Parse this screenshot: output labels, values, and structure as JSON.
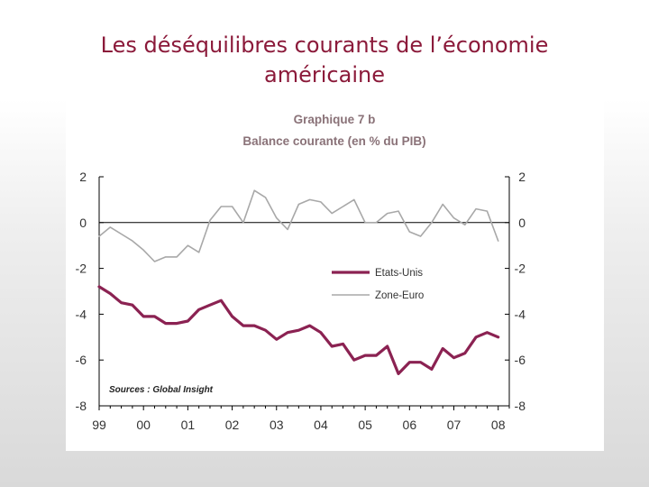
{
  "slide": {
    "title_line1": "Les déséquilibres courants de l’économie",
    "title_line2": "américaine"
  },
  "chart_data": {
    "type": "line",
    "title": "Graphique 7 b",
    "subtitle": "Balance courante (en % du PIB)",
    "xlabel": "",
    "ylabel": "",
    "x_tick_labels": [
      "99",
      "00",
      "01",
      "02",
      "03",
      "04",
      "05",
      "06",
      "07",
      "08"
    ],
    "x_range": [
      1999,
      2008.25
    ],
    "ylim": [
      -8,
      2
    ],
    "y_ticks": [
      2,
      0,
      -2,
      -4,
      -6,
      -8
    ],
    "y_tick_labels": [
      "2",
      "0",
      "-2",
      "-4",
      "-6",
      "-8"
    ],
    "zero_line": true,
    "source": "Sources : Global Insight",
    "legend_position": "center-right",
    "colors": {
      "title": "#8a7278",
      "us": "#8b2252",
      "euro": "#a8a8a8",
      "slide_title": "#8b1a3a"
    },
    "x": [
      1999.0,
      1999.25,
      1999.5,
      1999.75,
      2000.0,
      2000.25,
      2000.5,
      2000.75,
      2001.0,
      2001.25,
      2001.5,
      2001.75,
      2002.0,
      2002.25,
      2002.5,
      2002.75,
      2003.0,
      2003.25,
      2003.5,
      2003.75,
      2004.0,
      2004.25,
      2004.5,
      2004.75,
      2005.0,
      2005.25,
      2005.5,
      2005.75,
      2006.0,
      2006.25,
      2006.5,
      2006.75,
      2007.0,
      2007.25,
      2007.5,
      2007.75,
      2008.0
    ],
    "series": [
      {
        "name": "Etats-Unis",
        "values": [
          -2.8,
          -3.1,
          -3.5,
          -3.6,
          -4.1,
          -4.1,
          -4.4,
          -4.4,
          -4.3,
          -3.8,
          -3.6,
          -3.4,
          -4.1,
          -4.5,
          -4.5,
          -4.7,
          -5.1,
          -4.8,
          -4.7,
          -4.5,
          -4.8,
          -5.4,
          -5.3,
          -6.0,
          -5.8,
          -5.8,
          -5.4,
          -6.6,
          -6.1,
          -6.1,
          -6.4,
          -5.5,
          -5.9,
          -5.7,
          -5.0,
          -4.8,
          -5.0
        ]
      },
      {
        "name": "Zone-Euro",
        "values": [
          -0.6,
          -0.2,
          -0.5,
          -0.8,
          -1.2,
          -1.7,
          -1.5,
          -1.5,
          -1.0,
          -1.3,
          0.1,
          0.7,
          0.7,
          0.0,
          1.4,
          1.1,
          0.2,
          -0.3,
          0.8,
          1.0,
          0.9,
          0.4,
          0.7,
          1.0,
          0.0,
          0.0,
          0.4,
          0.5,
          -0.4,
          -0.6,
          0.0,
          0.8,
          0.2,
          -0.1,
          0.6,
          0.5,
          -0.8
        ]
      }
    ]
  }
}
